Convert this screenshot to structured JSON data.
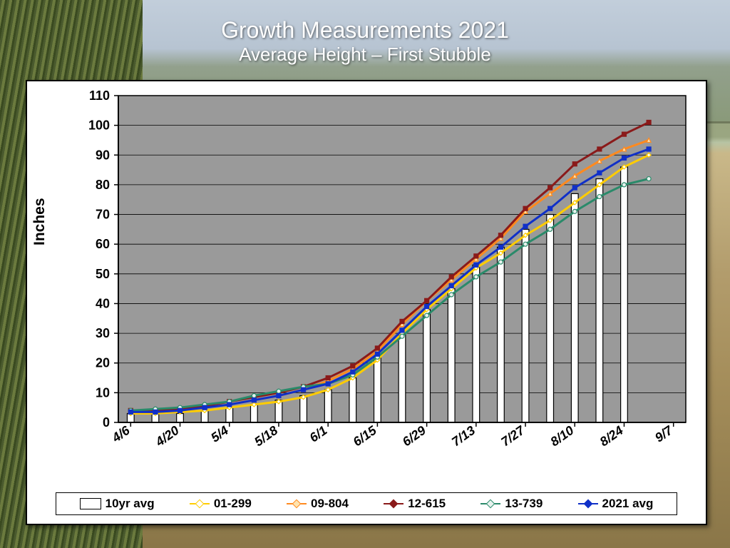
{
  "title": "Growth Measurements 2021",
  "subtitle": "Average Height – First Stubble",
  "chart": {
    "type": "bar+line",
    "ylabel": "Inches",
    "ylim": [
      0,
      110
    ],
    "ytick_step": 10,
    "plot_bg": "#9a9a9a",
    "grid_color": "#000000",
    "axis_color": "#000000",
    "bar_fill": "#ffffff",
    "bar_border": "#000000",
    "bar_width": 0.28,
    "line_width": 3,
    "marker_size": 6,
    "title_fontsize": 32,
    "subtitle_fontsize": 26,
    "ylabel_fontsize": 21,
    "tick_fontsize": 18,
    "x_major": [
      "4/6",
      "4/20",
      "5/4",
      "5/18",
      "6/1",
      "6/15",
      "6/29",
      "7/13",
      "7/27",
      "8/10",
      "8/24",
      "9/7"
    ],
    "x_all": [
      "4/6",
      "4/13",
      "4/20",
      "4/27",
      "5/4",
      "5/11",
      "5/18",
      "5/25",
      "6/1",
      "6/8",
      "6/15",
      "6/22",
      "6/29",
      "7/6",
      "7/13",
      "7/20",
      "7/27",
      "8/3",
      "8/10",
      "8/17",
      "8/24",
      "8/31",
      "9/7"
    ],
    "bars_10yr": [
      3,
      3,
      3,
      4,
      5,
      6,
      7.5,
      9,
      11,
      15,
      22,
      30,
      38,
      45,
      53,
      59,
      65,
      70,
      77,
      82,
      86
    ],
    "series": {
      "s1": {
        "label": "01-299",
        "color": "#ffcc00",
        "marker": "diamond",
        "marker_fill": "#ffffff",
        "y": [
          3,
          3,
          3.5,
          4,
          5,
          6,
          7,
          8.5,
          11,
          15,
          21,
          30,
          38,
          45,
          52,
          57,
          63,
          68,
          74,
          80,
          86,
          90
        ]
      },
      "s2": {
        "label": "09-804",
        "color": "#ff8a1f",
        "marker": "triangle",
        "marker_fill": "#ffe4b0",
        "y": [
          3.5,
          3.5,
          4,
          5,
          6,
          7.5,
          9,
          11,
          14,
          18,
          24,
          33,
          41,
          48,
          55,
          62,
          71,
          77,
          83,
          88,
          92,
          95
        ]
      },
      "s3": {
        "label": "12-615",
        "color": "#8a1a1a",
        "marker": "square",
        "marker_fill": "#8a1a1a",
        "y": [
          4,
          4,
          4.5,
          5.5,
          7,
          8.5,
          10,
          12,
          15,
          19,
          25,
          34,
          41,
          49,
          56,
          63,
          72,
          79,
          87,
          92,
          97,
          101
        ]
      },
      "s4": {
        "label": "13-739",
        "color": "#2a8a6a",
        "marker": "circle",
        "marker_fill": "#e6f2ee",
        "y": [
          4,
          4.5,
          5,
          6,
          7,
          9,
          10.5,
          12,
          13,
          16,
          22,
          29,
          36,
          43,
          49,
          54,
          60,
          65,
          71,
          76,
          80,
          82
        ]
      },
      "s5": {
        "label": "2021 avg",
        "color": "#1030c8",
        "marker": "square",
        "marker_fill": "#1030c8",
        "y": [
          3.5,
          3.5,
          4,
          5,
          6,
          7.5,
          9,
          11,
          13,
          17,
          23,
          31,
          39,
          46,
          53,
          59,
          66,
          72,
          79,
          84,
          89,
          92
        ]
      }
    }
  },
  "legend": [
    {
      "kind": "bar",
      "label": "10yr avg"
    },
    {
      "kind": "line",
      "label": "01-299",
      "color": "#ffcc00",
      "mfill": "#ffffff"
    },
    {
      "kind": "line",
      "label": "09-804",
      "color": "#ff8a1f",
      "mfill": "#ffe4b0"
    },
    {
      "kind": "line",
      "label": "12-615",
      "color": "#8a1a1a",
      "mfill": "#8a1a1a"
    },
    {
      "kind": "line",
      "label": "13-739",
      "color": "#2a8a6a",
      "mfill": "#e6f2ee"
    },
    {
      "kind": "line",
      "label": "2021 avg",
      "color": "#1030c8",
      "mfill": "#1030c8"
    }
  ]
}
